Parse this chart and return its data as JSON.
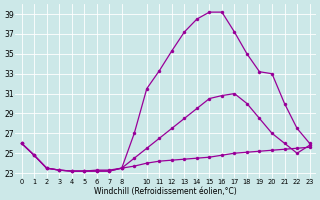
{
  "xlabel": "Windchill (Refroidissement éolien,°C)",
  "xlim": [
    -0.5,
    23.5
  ],
  "ylim": [
    22.5,
    40.0
  ],
  "yticks": [
    23,
    25,
    27,
    29,
    31,
    33,
    35,
    37,
    39
  ],
  "xtick_positions": [
    0,
    1,
    2,
    3,
    4,
    5,
    6,
    7,
    8,
    10,
    11,
    12,
    13,
    14,
    15,
    16,
    17,
    18,
    19,
    20,
    21,
    22,
    23
  ],
  "xtick_labels": [
    "0",
    "1",
    "2",
    "3",
    "4",
    "5",
    "6",
    "7",
    "8",
    "10",
    "11",
    "12",
    "13",
    "14",
    "15",
    "16",
    "17",
    "18",
    "19",
    "20",
    "21",
    "22",
    "23"
  ],
  "bg_color": "#cce8e8",
  "grid_color": "#ffffff",
  "line_color": "#990099",
  "line1_x": [
    0,
    1,
    2,
    3,
    4,
    5,
    6,
    7,
    8,
    9,
    10,
    11,
    12,
    13,
    14,
    15,
    16,
    17,
    18,
    19,
    20,
    21,
    22,
    23
  ],
  "line1_y": [
    26.0,
    24.8,
    23.5,
    23.3,
    23.2,
    23.2,
    23.2,
    23.2,
    23.5,
    23.7,
    24.0,
    24.2,
    24.3,
    24.4,
    24.5,
    24.6,
    24.8,
    25.0,
    25.1,
    25.2,
    25.3,
    25.4,
    25.5,
    25.6
  ],
  "line2_x": [
    0,
    1,
    2,
    3,
    4,
    5,
    6,
    7,
    8,
    9,
    10,
    11,
    12,
    13,
    14,
    15,
    16,
    17,
    18,
    19,
    20,
    21,
    22,
    23
  ],
  "line2_y": [
    26.0,
    24.8,
    23.5,
    23.3,
    23.2,
    23.2,
    23.3,
    23.3,
    23.5,
    24.5,
    25.5,
    26.5,
    27.5,
    28.5,
    29.5,
    30.5,
    30.8,
    31.0,
    30.0,
    28.5,
    27.0,
    26.0,
    25.0,
    25.8
  ],
  "line3_x": [
    0,
    1,
    2,
    3,
    4,
    5,
    6,
    7,
    8,
    9,
    10,
    11,
    12,
    13,
    14,
    15,
    16,
    17,
    18,
    19,
    20,
    21,
    22,
    23
  ],
  "line3_y": [
    26.0,
    24.8,
    23.5,
    23.3,
    23.2,
    23.2,
    23.2,
    23.2,
    23.5,
    27.0,
    31.5,
    33.3,
    35.3,
    37.2,
    38.5,
    39.2,
    39.2,
    37.2,
    35.0,
    33.2,
    33.0,
    30.0,
    27.5,
    26.0
  ]
}
